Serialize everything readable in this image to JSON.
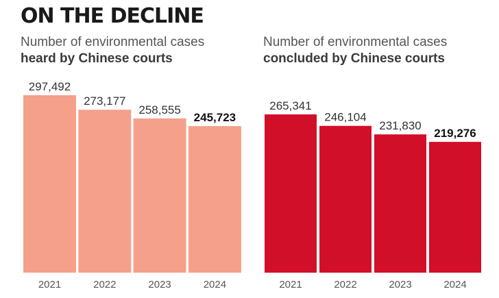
{
  "headline": "ON THE DECLINE",
  "chart_data": [
    {
      "type": "bar",
      "title_line1": "Number of environmental cases",
      "title_line2": "heard by Chinese courts",
      "categories": [
        "2021",
        "2022",
        "2023",
        "2024"
      ],
      "values": [
        297492,
        273177,
        258555,
        245723
      ],
      "value_labels": [
        "297,492",
        "273,177",
        "258,555",
        "245,723"
      ],
      "highlight_last": true,
      "color": "#f4a08a",
      "ylim": [
        0,
        320000
      ]
    },
    {
      "type": "bar",
      "title_line1": "Number of environmental cases",
      "title_line2": "concluded by Chinese courts",
      "categories": [
        "2021",
        "2022",
        "2023",
        "2024"
      ],
      "values": [
        265341,
        246104,
        231830,
        219276
      ],
      "value_labels": [
        "265,341",
        "246,104",
        "231,830",
        "219,276"
      ],
      "highlight_last": true,
      "color": "#d20f28",
      "ylim": [
        0,
        320000
      ]
    }
  ]
}
